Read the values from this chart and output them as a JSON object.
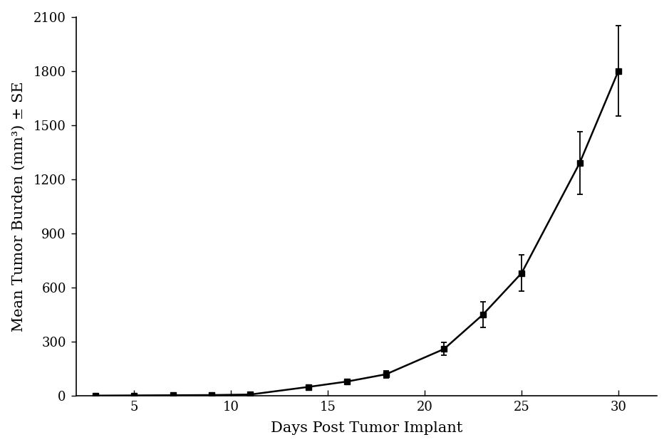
{
  "x": [
    3,
    5,
    7,
    9,
    11,
    14,
    16,
    18,
    21,
    23,
    25,
    28,
    30
  ],
  "y": [
    2,
    3,
    4,
    5,
    8,
    50,
    80,
    120,
    260,
    450,
    680,
    1290,
    1800
  ],
  "yerr": [
    1,
    1,
    1,
    1,
    2,
    5,
    8,
    20,
    35,
    70,
    100,
    175,
    250
  ],
  "xlabel": "Days Post Tumor Implant",
  "ylabel": "Mean Tumor Burden (mm³) ± SE",
  "xlim": [
    2,
    32
  ],
  "ylim": [
    0,
    2100
  ],
  "xticks": [
    5,
    10,
    15,
    20,
    25,
    30
  ],
  "yticks": [
    0,
    300,
    600,
    900,
    1200,
    1500,
    1800,
    2100
  ],
  "line_color": "#000000",
  "marker_color": "#000000",
  "background_color": "#ffffff",
  "xlabel_fontsize": 15,
  "ylabel_fontsize": 15,
  "tick_fontsize": 13,
  "line_width": 1.8,
  "marker_size": 6,
  "capsize": 3
}
